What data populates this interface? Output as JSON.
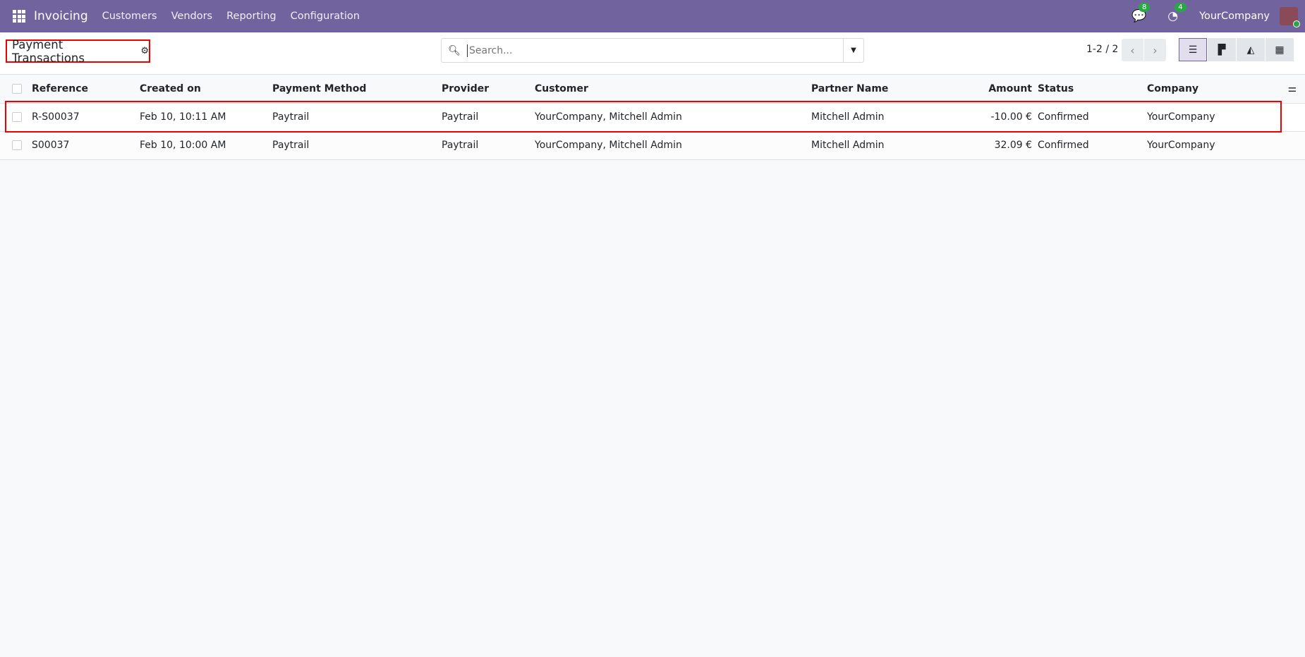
{
  "navbar": {
    "app_name": "Invoicing",
    "menu": [
      "Customers",
      "Vendors",
      "Reporting",
      "Configuration"
    ],
    "messages_count": "8",
    "activities_count": "4",
    "company": "YourCompany"
  },
  "control_panel": {
    "title": "Payment Transactions",
    "search_placeholder": "Search...",
    "pager": "1-2 / 2",
    "views": [
      "list",
      "kanban",
      "graph",
      "pivot"
    ],
    "active_view": "list"
  },
  "table": {
    "columns": [
      "Reference",
      "Created on",
      "Payment Method",
      "Provider",
      "Customer",
      "Partner Name",
      "Amount",
      "Status",
      "Company"
    ],
    "rows": [
      {
        "reference": "R-S00037",
        "created_on": "Feb 10, 10:11 AM",
        "payment_method": "Paytrail",
        "provider": "Paytrail",
        "customer": "YourCompany, Mitchell Admin",
        "partner_name": "Mitchell Admin",
        "amount": "-10.00 €",
        "status": "Confirmed",
        "company": "YourCompany"
      },
      {
        "reference": "S00037",
        "created_on": "Feb 10, 10:00 AM",
        "payment_method": "Paytrail",
        "provider": "Paytrail",
        "customer": "YourCompany, Mitchell Admin",
        "partner_name": "Mitchell Admin",
        "amount": "32.09 €",
        "status": "Confirmed",
        "company": "YourCompany"
      }
    ]
  },
  "colors": {
    "navbar": "#71639e",
    "highlight": "#e00000",
    "badge": "#28a745"
  }
}
